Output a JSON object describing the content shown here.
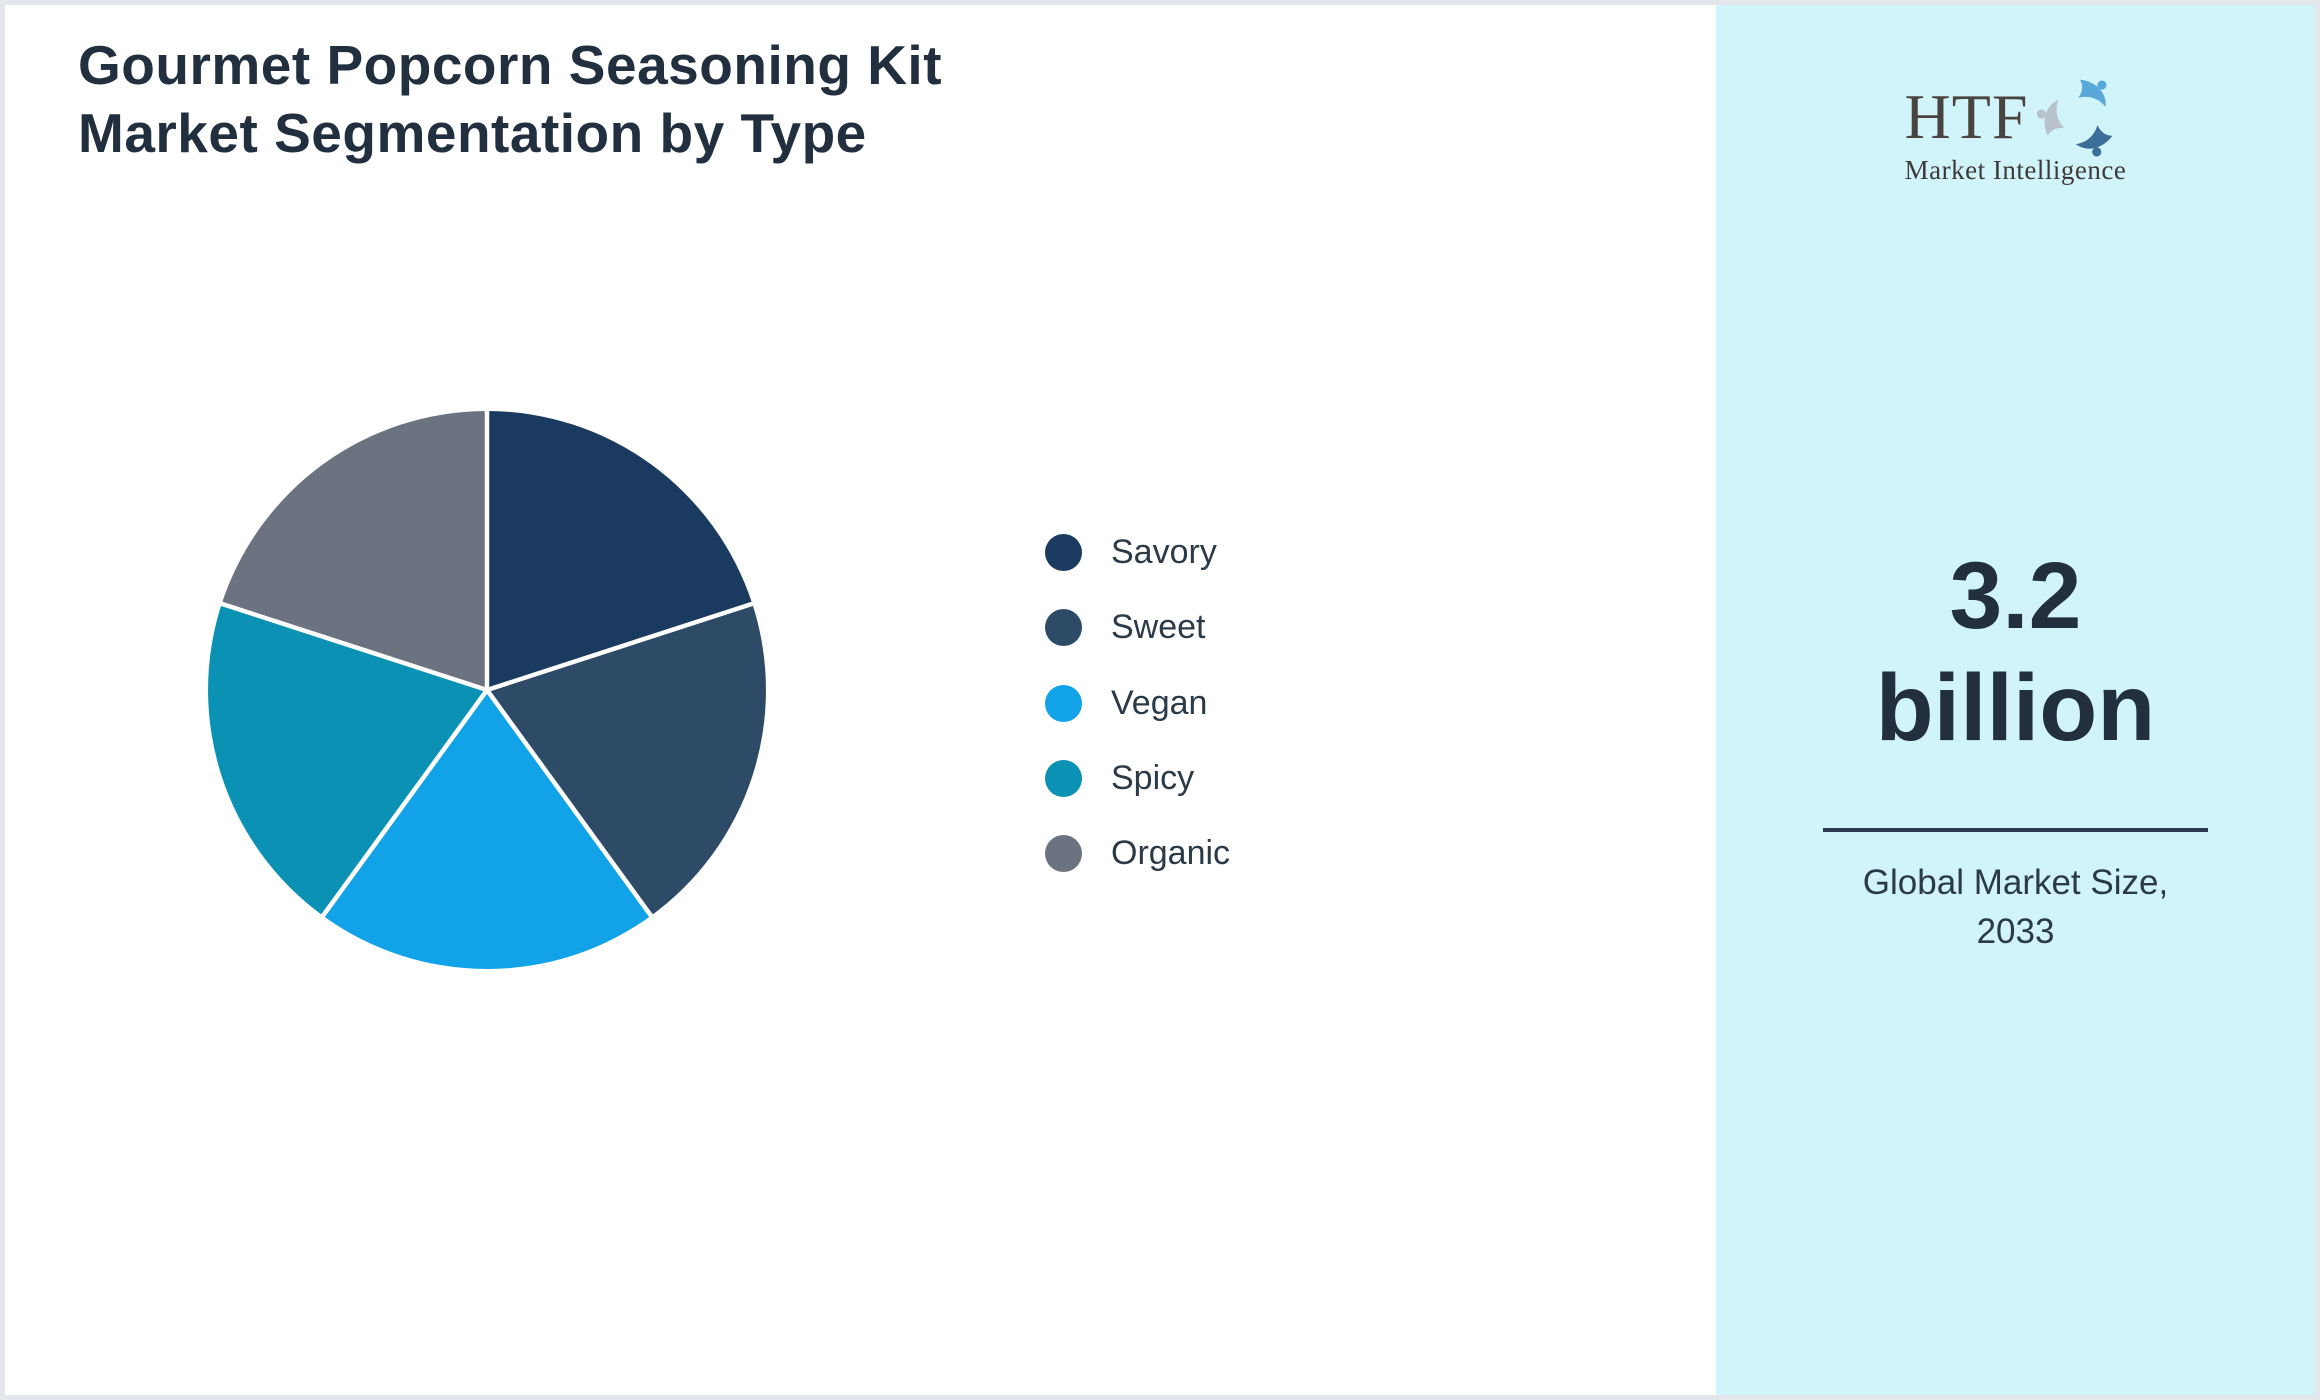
{
  "theme": {
    "title-color": "#212f3e",
    "sidebar-bg": "#d1f4fb",
    "divider": "#2a3b4d",
    "text": "#2b3a48",
    "page-border": "#e3e6ea"
  },
  "header": {
    "title_line1": "Gourmet Popcorn Seasoning Kit",
    "title_line2": "Market Segmentation by Type"
  },
  "chart_data": {
    "type": "pie",
    "title": "Gourmet Popcorn Seasoning Kit Market Segmentation by Type",
    "labels": [
      "Savory",
      "Sweet",
      "Vegan",
      "Spicy",
      "Organic"
    ],
    "values": [
      20,
      20,
      20,
      20,
      20
    ],
    "unit": "percent",
    "colors": [
      "#1b3a5f",
      "#2d4a67",
      "#11a2e8",
      "#0a91b4",
      "#6b7280"
    ],
    "start_angle_deg": 0,
    "direction": "clockwise",
    "slice_gap_color": "#ffffff",
    "legend_position": "right"
  },
  "sidebar": {
    "logo": {
      "text": "HTF",
      "subtext": "Market Intelligence",
      "icon": "dolphins-swirl-icon",
      "icon_colors": [
        "#58a9da",
        "#3d6e99",
        "#b7c2cc"
      ]
    },
    "stat_value_line1": "3.2",
    "stat_value_line2": "billion",
    "caption_line1": "Global Market Size,",
    "caption_line2": "2033"
  }
}
